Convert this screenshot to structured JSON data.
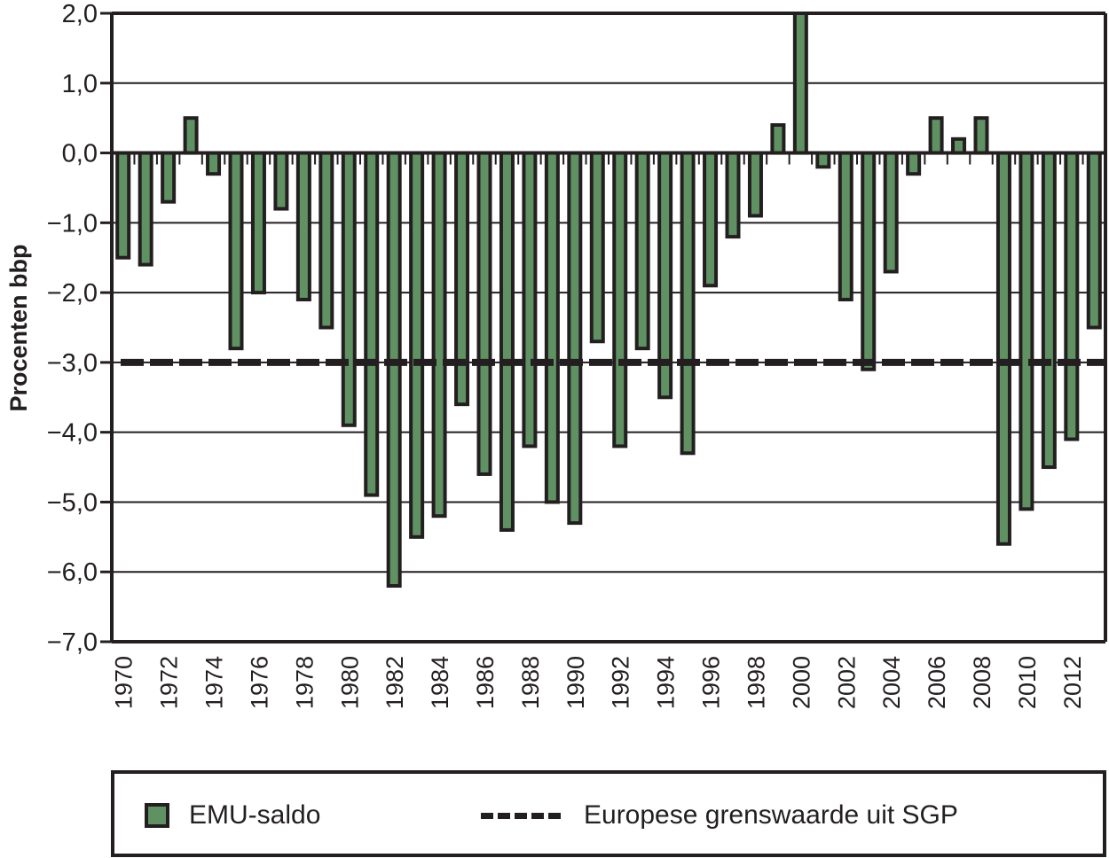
{
  "chart_data": {
    "type": "bar",
    "title": "",
    "xlabel": "",
    "ylabel": "Procenten bbp",
    "ylim": [
      -7.0,
      2.0
    ],
    "yticks": [
      2.0,
      1.0,
      0.0,
      -1.0,
      -2.0,
      -3.0,
      -4.0,
      -5.0,
      -6.0,
      -7.0
    ],
    "ytick_labels": [
      "2,0",
      "1,0",
      "0,0",
      "−1,0",
      "−2,0",
      "−3,0",
      "−4,0",
      "−5,0",
      "−6,0",
      "−7,0"
    ],
    "grid": true,
    "categories": [
      1970,
      1971,
      1972,
      1973,
      1974,
      1975,
      1976,
      1977,
      1978,
      1979,
      1980,
      1981,
      1982,
      1983,
      1984,
      1985,
      1986,
      1987,
      1988,
      1989,
      1990,
      1991,
      1992,
      1993,
      1994,
      1995,
      1996,
      1997,
      1998,
      1999,
      2000,
      2001,
      2002,
      2003,
      2004,
      2005,
      2006,
      2007,
      2008,
      2009,
      2010,
      2011,
      2012,
      2013
    ],
    "xtick_labels": [
      "1970",
      "1972",
      "1974",
      "1976",
      "1978",
      "1980",
      "1982",
      "1984",
      "1986",
      "1988",
      "1990",
      "1992",
      "1994",
      "1996",
      "1998",
      "2000",
      "2002",
      "2004",
      "2006",
      "2008",
      "2010",
      "2012"
    ],
    "series": [
      {
        "name": "EMU-saldo",
        "type": "bar",
        "color": "#5f9162",
        "values": [
          -1.5,
          -1.6,
          -0.7,
          0.5,
          -0.3,
          -2.8,
          -2.0,
          -0.8,
          -2.1,
          -2.5,
          -3.9,
          -4.9,
          -6.2,
          -5.5,
          -5.2,
          -3.6,
          -4.6,
          -5.4,
          -4.2,
          -5.0,
          -5.3,
          -2.7,
          -4.2,
          -2.8,
          -3.5,
          -4.3,
          -1.9,
          -1.2,
          -0.9,
          0.4,
          2.0,
          -0.2,
          -2.1,
          -3.1,
          -1.7,
          -0.3,
          0.5,
          0.2,
          0.5,
          -5.6,
          -5.1,
          -4.5,
          -4.1,
          -2.5
        ]
      },
      {
        "name": "Europese grenswaarde uit SGP",
        "type": "hline",
        "color": "#231f20",
        "value": -3.0
      }
    ],
    "legend_position": "bottom"
  },
  "legend": {
    "items": [
      {
        "label": "EMU-saldo"
      },
      {
        "label": "Europese grenswaarde uit SGP"
      }
    ]
  }
}
